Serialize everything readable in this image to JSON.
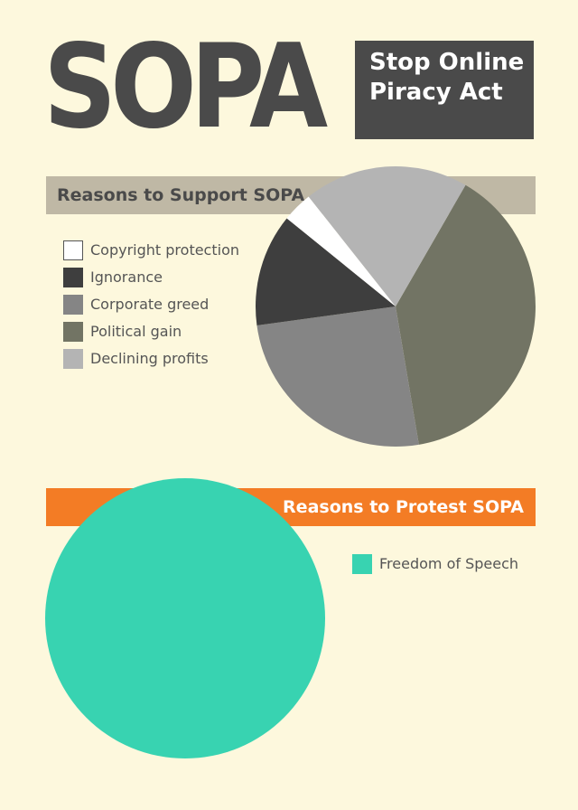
{
  "header": {
    "title": "SOPA",
    "subtitle": "Stop Online\nPiracy Act"
  },
  "chart_data": [
    {
      "type": "pie",
      "title": "Reasons to Support SOPA",
      "legend_placement": "left",
      "start_angle_deg": -60,
      "slices": [
        {
          "label": "Political gain",
          "value": 39.0,
          "color": "#727464"
        },
        {
          "label": "Corporate greed",
          "value": 25.5,
          "color": "#858585"
        },
        {
          "label": "Ignorance",
          "value": 13.0,
          "color": "#3e3e3e"
        },
        {
          "label": "Copyright protection",
          "value": 3.5,
          "color": "#ffffff"
        },
        {
          "label": "Declining profits",
          "value": 19.0,
          "color": "#b4b4b4"
        }
      ],
      "legend": [
        {
          "label": "Copyright protection",
          "color": "#ffffff"
        },
        {
          "label": "Ignorance",
          "color": "#3e3e3e"
        },
        {
          "label": "Corporate greed",
          "color": "#858585"
        },
        {
          "label": "Political gain",
          "color": "#727464"
        },
        {
          "label": "Declining profits",
          "color": "#b4b4b4"
        }
      ]
    },
    {
      "type": "pie",
      "title": "Reasons to Protest SOPA",
      "legend_placement": "right",
      "start_angle_deg": 0,
      "slices": [
        {
          "label": "Freedom of Speech",
          "value": 100,
          "color": "#38d3b1"
        }
      ],
      "legend": [
        {
          "label": "Freedom of Speech",
          "color": "#38d3b1"
        }
      ]
    }
  ]
}
